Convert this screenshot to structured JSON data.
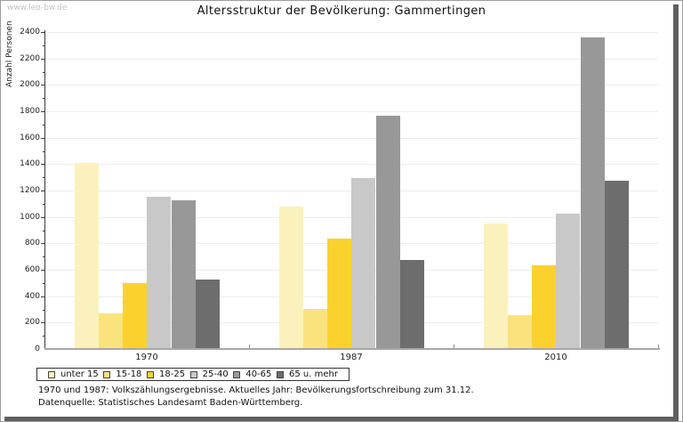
{
  "window": {
    "watermark": "www.leo-bw.de"
  },
  "title": "Altersstruktur der Bevölkerung: Gammertingen",
  "footnotes": [
    "1970 und 1987: Volkszählungsergebnisse. Aktuelles Jahr: Bevölkerungsfortschreibung zum 31.12.",
    "Datenquelle: Statistisches Landesamt Baden-Württemberg."
  ],
  "chart_data": {
    "type": "bar",
    "title": "Altersstruktur der Bevölkerung: Gammertingen",
    "categories": [
      "1970",
      "1987",
      "2010"
    ],
    "series": [
      {
        "name": "unter 15",
        "color": "#fbf1bc",
        "values": [
          1400,
          1070,
          945
        ]
      },
      {
        "name": "15-18",
        "color": "#fae37c",
        "values": [
          260,
          300,
          250
        ]
      },
      {
        "name": "18-25",
        "color": "#fbd22d",
        "values": [
          490,
          830,
          630
        ]
      },
      {
        "name": "25-40",
        "color": "#c8c8c8",
        "values": [
          1145,
          1290,
          1015
        ]
      },
      {
        "name": "40-65",
        "color": "#989898",
        "values": [
          1120,
          1760,
          2350
        ]
      },
      {
        "name": "65 u. mehr",
        "color": "#6d6d6d",
        "values": [
          520,
          665,
          1270
        ]
      }
    ],
    "ylabel": "Anzahl Personen",
    "ylim": [
      0,
      2400
    ],
    "ytick_step": 200,
    "ytick_minor_step": 100,
    "grid": true,
    "legend_position": "bottom-left",
    "axis_colors": {
      "grid": "#ececec",
      "y_axis": "#3a3a3a",
      "x_axis": "#a8a8a8"
    }
  }
}
